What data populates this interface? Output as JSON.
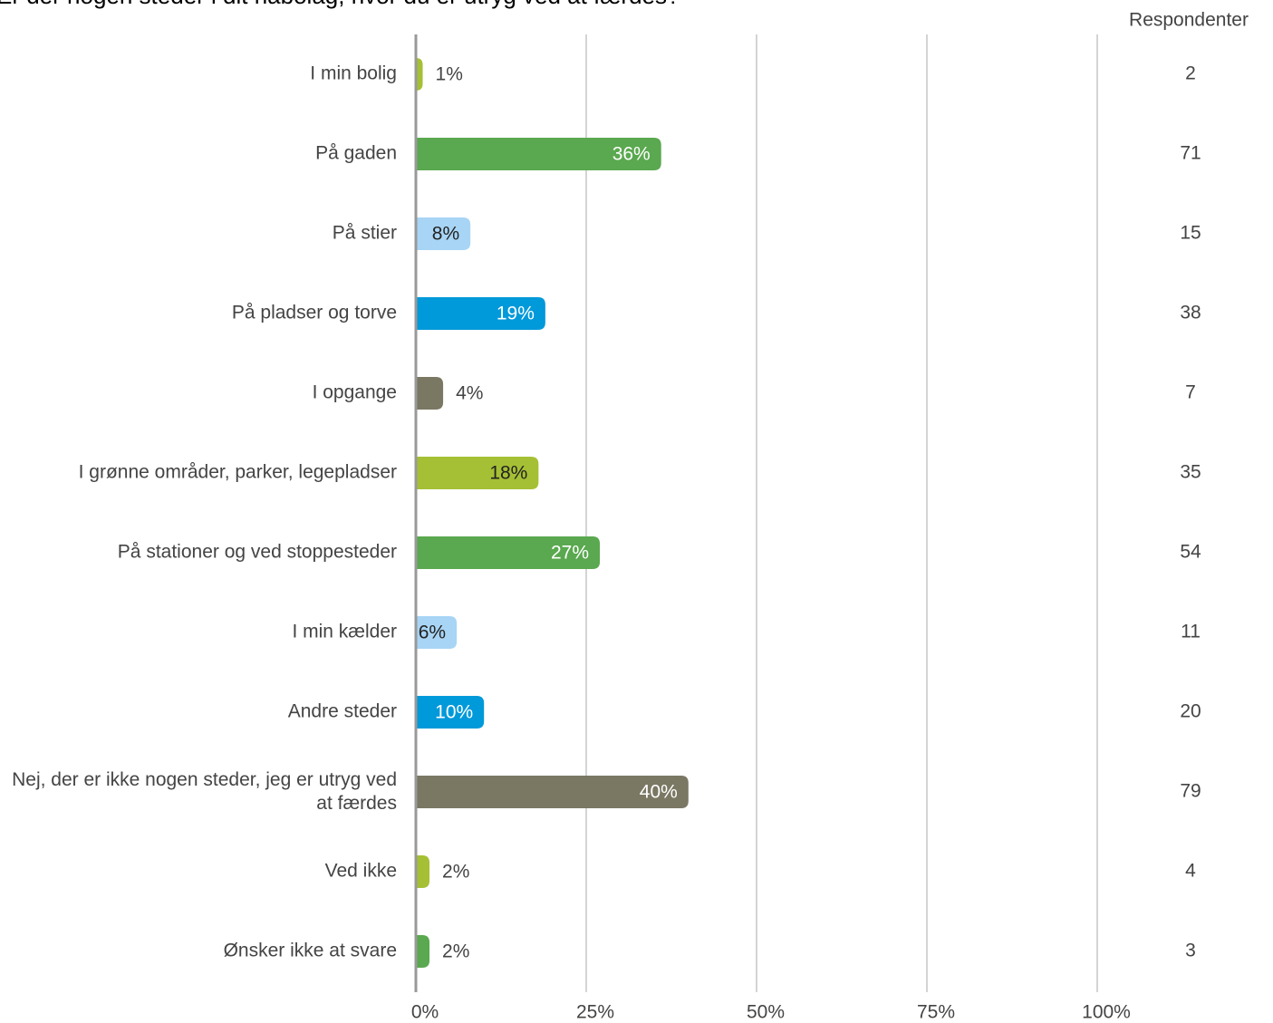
{
  "chart_data": {
    "type": "bar",
    "orientation": "horizontal",
    "title": "Er der nogen steder i dit nabolag, hvor du er utryg ved at færdes?",
    "categories": [
      "I min bolig",
      "På gaden",
      "På stier",
      "På pladser og torve",
      "I opgange",
      "I grønne områder, parker, legepladser",
      "På stationer og ved stoppesteder",
      "I min kælder",
      "Andre steder",
      "Nej, der er ikke nogen steder, jeg er utryg ved at færdes",
      "Ved ikke",
      "Ønsker ikke at svare"
    ],
    "values": [
      1,
      36,
      8,
      19,
      4,
      18,
      27,
      6,
      10,
      40,
      2,
      2
    ],
    "value_labels": [
      "1%",
      "36%",
      "8%",
      "19%",
      "4%",
      "18%",
      "27%",
      "6%",
      "10%",
      "40%",
      "2%",
      "2%"
    ],
    "colors": [
      "#a5c034",
      "#5aa84f",
      "#a8d5f5",
      "#0099da",
      "#7a7763",
      "#a5c034",
      "#5aa84f",
      "#a8d5f5",
      "#0099da",
      "#7a7763",
      "#a5c034",
      "#5aa84f"
    ],
    "xlim": [
      0,
      100
    ],
    "xticks": [
      {
        "value": 0,
        "label": "0%"
      },
      {
        "value": 25,
        "label": "25%"
      },
      {
        "value": 50,
        "label": "50%"
      },
      {
        "value": 75,
        "label": "75%"
      },
      {
        "value": 100,
        "label": "100%"
      }
    ],
    "grid": true,
    "respondents": {
      "label": "Respondenter",
      "values": [
        2,
        71,
        15,
        38,
        7,
        35,
        54,
        11,
        20,
        79,
        4,
        3
      ]
    }
  }
}
